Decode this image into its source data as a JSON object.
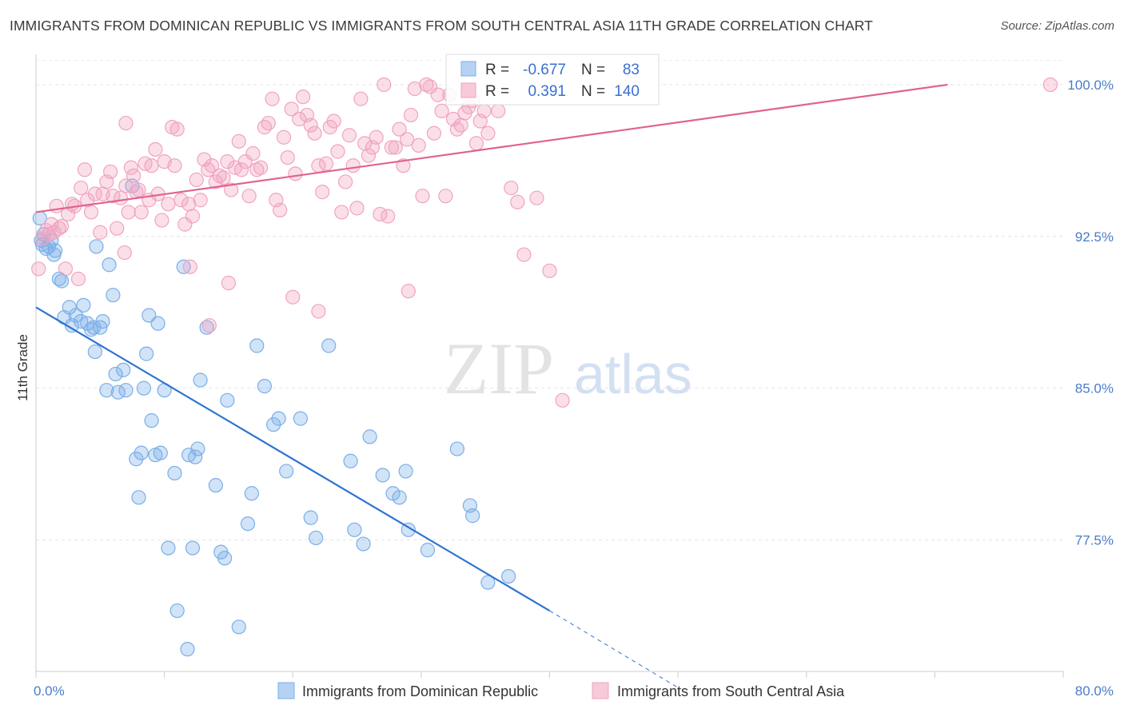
{
  "title": "IMMIGRANTS FROM DOMINICAN REPUBLIC VS IMMIGRANTS FROM SOUTH CENTRAL ASIA 11TH GRADE CORRELATION CHART",
  "source": "Source: ZipAtlas.com",
  "watermark": {
    "zip": "ZIP",
    "atlas": "atlas"
  },
  "chart_data": {
    "type": "scatter",
    "xlim": [
      0,
      80
    ],
    "ylim": [
      71,
      101.5
    ],
    "xlabel": "",
    "ylabel": "11th Grade",
    "x_tick_labels": [
      {
        "value": 0,
        "label": "0.0%"
      },
      {
        "value": 80,
        "label": "80.0%"
      }
    ],
    "y_ticks": [
      {
        "value": 77.5,
        "label": "77.5%"
      },
      {
        "value": 85.0,
        "label": "85.0%"
      },
      {
        "value": 92.5,
        "label": "92.5%"
      },
      {
        "value": 100.0,
        "label": "100.0%"
      }
    ],
    "grid": true,
    "legend_position": "top-center",
    "legend": [
      {
        "r_label": "R =",
        "r_value": "-0.677",
        "n_label": "N =",
        "n_value": "83"
      },
      {
        "r_label": "R =",
        "r_value": "0.391",
        "n_label": "N =",
        "n_value": "140"
      }
    ],
    "series": [
      {
        "name": "Immigrants from Dominican Republic",
        "color": "#7baee8",
        "line_color": "#2f74d0",
        "trend": {
          "x0": 0,
          "y0": 89.0,
          "x1": 40,
          "y1": 74.0,
          "dash_to_x": 50,
          "dash_to_y": 70.2
        },
        "points": [
          [
            0.3,
            93.4
          ],
          [
            0.4,
            92.3
          ],
          [
            0.5,
            92.1
          ],
          [
            0.6,
            92.6
          ],
          [
            0.8,
            91.9
          ],
          [
            1.0,
            92.0
          ],
          [
            1.2,
            92.3
          ],
          [
            1.4,
            91.6
          ],
          [
            1.5,
            91.8
          ],
          [
            1.8,
            90.4
          ],
          [
            2.0,
            90.3
          ],
          [
            2.2,
            88.5
          ],
          [
            2.6,
            89.0
          ],
          [
            2.8,
            88.1
          ],
          [
            3.1,
            88.6
          ],
          [
            3.5,
            88.3
          ],
          [
            3.7,
            89.1
          ],
          [
            4.0,
            88.2
          ],
          [
            4.3,
            87.9
          ],
          [
            4.5,
            88.0
          ],
          [
            4.6,
            86.8
          ],
          [
            4.7,
            92.0
          ],
          [
            5.0,
            88.0
          ],
          [
            5.2,
            88.3
          ],
          [
            5.5,
            84.9
          ],
          [
            5.7,
            91.1
          ],
          [
            6.0,
            89.6
          ],
          [
            6.2,
            85.7
          ],
          [
            6.4,
            84.8
          ],
          [
            6.8,
            85.9
          ],
          [
            7.0,
            84.9
          ],
          [
            7.5,
            95.0
          ],
          [
            7.8,
            81.5
          ],
          [
            8.0,
            79.6
          ],
          [
            8.2,
            81.8
          ],
          [
            8.4,
            85.0
          ],
          [
            8.6,
            86.7
          ],
          [
            8.8,
            88.6
          ],
          [
            9.0,
            83.4
          ],
          [
            9.3,
            81.7
          ],
          [
            9.5,
            88.2
          ],
          [
            9.7,
            81.8
          ],
          [
            10.0,
            84.9
          ],
          [
            10.3,
            77.1
          ],
          [
            10.8,
            80.8
          ],
          [
            11.0,
            74.0
          ],
          [
            11.5,
            91.0
          ],
          [
            11.8,
            72.1
          ],
          [
            11.9,
            81.7
          ],
          [
            12.2,
            77.1
          ],
          [
            12.4,
            81.6
          ],
          [
            12.6,
            82.0
          ],
          [
            12.8,
            85.4
          ],
          [
            13.3,
            88.0
          ],
          [
            14.0,
            80.2
          ],
          [
            14.4,
            76.9
          ],
          [
            14.7,
            76.6
          ],
          [
            14.9,
            84.4
          ],
          [
            15.8,
            73.2
          ],
          [
            16.5,
            78.3
          ],
          [
            16.8,
            79.8
          ],
          [
            17.2,
            87.1
          ],
          [
            17.8,
            85.1
          ],
          [
            18.5,
            83.2
          ],
          [
            18.9,
            83.5
          ],
          [
            19.5,
            80.9
          ],
          [
            20.6,
            83.5
          ],
          [
            21.4,
            78.6
          ],
          [
            21.8,
            77.6
          ],
          [
            22.8,
            87.1
          ],
          [
            24.5,
            81.4
          ],
          [
            24.8,
            78.0
          ],
          [
            25.5,
            77.3
          ],
          [
            26.0,
            82.6
          ],
          [
            27.0,
            80.7
          ],
          [
            27.8,
            79.8
          ],
          [
            28.3,
            79.6
          ],
          [
            28.8,
            80.9
          ],
          [
            29.0,
            78.0
          ],
          [
            30.5,
            77.0
          ],
          [
            32.8,
            82.0
          ],
          [
            33.8,
            79.2
          ],
          [
            34.0,
            78.7
          ],
          [
            35.2,
            75.4
          ],
          [
            36.8,
            75.7
          ]
        ]
      },
      {
        "name": "Immigrants from South Central Asia",
        "color": "#f1a3c0",
        "line_color": "#e0628f",
        "trend": {
          "x0": 0,
          "y0": 93.7,
          "x1": 71,
          "y1": 100.0
        },
        "points": [
          [
            0.2,
            90.9
          ],
          [
            0.5,
            92.4
          ],
          [
            0.8,
            92.8
          ],
          [
            1.0,
            92.6
          ],
          [
            1.2,
            93.1
          ],
          [
            1.4,
            92.7
          ],
          [
            1.6,
            94.0
          ],
          [
            1.8,
            92.9
          ],
          [
            2.0,
            93.0
          ],
          [
            2.3,
            90.9
          ],
          [
            2.5,
            93.6
          ],
          [
            2.8,
            94.1
          ],
          [
            3.0,
            94.0
          ],
          [
            3.3,
            90.4
          ],
          [
            3.5,
            94.9
          ],
          [
            3.8,
            95.8
          ],
          [
            4.0,
            94.3
          ],
          [
            4.3,
            93.7
          ],
          [
            4.6,
            94.6
          ],
          [
            5.0,
            92.7
          ],
          [
            5.2,
            94.6
          ],
          [
            5.5,
            95.2
          ],
          [
            5.8,
            95.7
          ],
          [
            6.0,
            94.5
          ],
          [
            6.3,
            92.9
          ],
          [
            6.6,
            94.4
          ],
          [
            6.9,
            91.7
          ],
          [
            7.0,
            95.0
          ],
          [
            7.2,
            93.7
          ],
          [
            7.4,
            95.9
          ],
          [
            7.6,
            95.5
          ],
          [
            7.8,
            94.7
          ],
          [
            8.0,
            94.8
          ],
          [
            8.2,
            93.7
          ],
          [
            8.5,
            96.1
          ],
          [
            8.8,
            94.3
          ],
          [
            9.0,
            96.0
          ],
          [
            9.3,
            96.8
          ],
          [
            9.5,
            94.6
          ],
          [
            9.8,
            93.3
          ],
          [
            10.0,
            96.2
          ],
          [
            10.3,
            94.1
          ],
          [
            10.6,
            97.9
          ],
          [
            10.8,
            96.0
          ],
          [
            11.0,
            97.8
          ],
          [
            11.3,
            94.3
          ],
          [
            11.6,
            93.1
          ],
          [
            11.9,
            94.1
          ],
          [
            12.2,
            93.5
          ],
          [
            12.5,
            95.3
          ],
          [
            12.8,
            94.3
          ],
          [
            13.1,
            96.3
          ],
          [
            13.4,
            95.8
          ],
          [
            13.7,
            96.0
          ],
          [
            14.0,
            95.2
          ],
          [
            14.3,
            95.5
          ],
          [
            14.6,
            95.4
          ],
          [
            14.9,
            96.2
          ],
          [
            15.2,
            94.8
          ],
          [
            15.5,
            95.9
          ],
          [
            15.8,
            97.2
          ],
          [
            16.0,
            95.8
          ],
          [
            16.3,
            96.2
          ],
          [
            16.6,
            94.5
          ],
          [
            16.9,
            96.6
          ],
          [
            17.2,
            95.8
          ],
          [
            17.5,
            95.9
          ],
          [
            17.8,
            97.9
          ],
          [
            18.1,
            98.1
          ],
          [
            18.4,
            99.3
          ],
          [
            18.7,
            94.3
          ],
          [
            19.0,
            93.8
          ],
          [
            19.3,
            97.4
          ],
          [
            19.6,
            96.4
          ],
          [
            19.9,
            98.8
          ],
          [
            20.2,
            95.6
          ],
          [
            20.5,
            98.3
          ],
          [
            20.8,
            99.4
          ],
          [
            21.1,
            98.5
          ],
          [
            21.4,
            98.0
          ],
          [
            21.7,
            97.6
          ],
          [
            22.0,
            96.0
          ],
          [
            22.3,
            94.7
          ],
          [
            22.6,
            96.1
          ],
          [
            22.9,
            97.9
          ],
          [
            23.2,
            98.2
          ],
          [
            23.5,
            96.7
          ],
          [
            23.8,
            93.7
          ],
          [
            24.1,
            95.2
          ],
          [
            24.4,
            97.5
          ],
          [
            24.7,
            96.0
          ],
          [
            25.0,
            93.9
          ],
          [
            25.3,
            99.3
          ],
          [
            25.6,
            97.1
          ],
          [
            25.9,
            96.5
          ],
          [
            26.2,
            96.9
          ],
          [
            26.5,
            97.4
          ],
          [
            26.8,
            93.6
          ],
          [
            27.1,
            100.0
          ],
          [
            27.4,
            93.5
          ],
          [
            27.7,
            96.9
          ],
          [
            28.0,
            96.9
          ],
          [
            28.3,
            97.8
          ],
          [
            28.6,
            96.0
          ],
          [
            28.9,
            97.3
          ],
          [
            29.2,
            98.5
          ],
          [
            29.5,
            99.8
          ],
          [
            29.8,
            97.0
          ],
          [
            30.1,
            94.5
          ],
          [
            30.4,
            100.0
          ],
          [
            30.7,
            99.9
          ],
          [
            31.0,
            97.6
          ],
          [
            31.3,
            99.5
          ],
          [
            31.6,
            98.7
          ],
          [
            31.9,
            94.5
          ],
          [
            32.2,
            99.5
          ],
          [
            32.5,
            98.3
          ],
          [
            32.8,
            97.8
          ],
          [
            33.1,
            98.0
          ],
          [
            33.4,
            98.6
          ],
          [
            33.7,
            98.9
          ],
          [
            34.0,
            99.2
          ],
          [
            34.3,
            97.1
          ],
          [
            34.6,
            98.2
          ],
          [
            34.9,
            98.7
          ],
          [
            35.2,
            97.6
          ],
          [
            36.0,
            98.7
          ],
          [
            37.0,
            94.9
          ],
          [
            37.5,
            94.2
          ],
          [
            38.0,
            91.6
          ],
          [
            39.0,
            94.4
          ],
          [
            40.0,
            90.8
          ],
          [
            41.0,
            84.4
          ],
          [
            7.0,
            98.1
          ],
          [
            20.0,
            89.5
          ],
          [
            12.0,
            91.0
          ],
          [
            15.0,
            90.2
          ],
          [
            22.0,
            88.8
          ],
          [
            13.5,
            88.1
          ],
          [
            29.0,
            89.8
          ],
          [
            79.0,
            100.0
          ]
        ]
      }
    ]
  }
}
